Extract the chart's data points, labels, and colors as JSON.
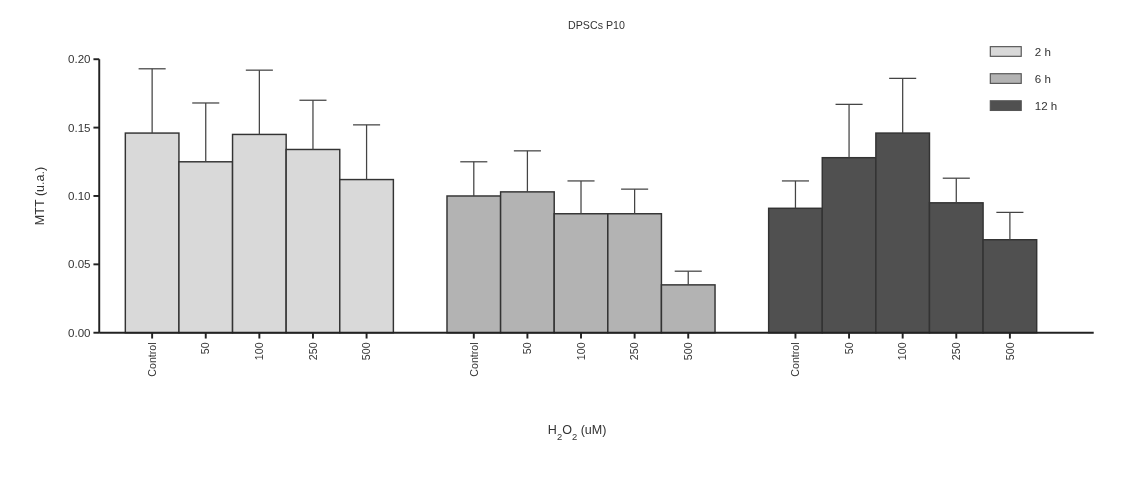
{
  "chart_data": {
    "type": "bar",
    "title": "DPSCs P10",
    "xlabel": "H$_{2}$O$_{2}$ (uM)",
    "ylabel": "MTT (u.a.)",
    "categories": [
      "Control",
      "50",
      "100",
      "250",
      "500",
      null,
      "Control",
      "50",
      "100",
      "250",
      "500",
      null,
      "Control",
      "50",
      "100",
      "250",
      "500"
    ],
    "ylim": [
      0,
      0.2
    ],
    "yticks": [
      {
        "value": 0,
        "label": "0.00"
      },
      {
        "value": 0.05,
        "label": "0.05"
      },
      {
        "value": 0.1,
        "label": "0.10"
      },
      {
        "value": 0.15,
        "label": "0.15"
      },
      {
        "value": 0.2,
        "label": "0.20"
      }
    ],
    "grid": false,
    "legend": "top right",
    "series": [
      {
        "name": "2 h",
        "color": "#d9d9d9",
        "values": [
          0.146,
          0.125,
          0.145,
          0.134,
          0.112,
          null,
          null,
          null,
          null,
          null,
          null,
          null,
          null,
          null,
          null,
          null,
          null
        ],
        "errors": [
          [
            0.146,
            0.193
          ],
          [
            0.125,
            0.168
          ],
          [
            0.145,
            0.192
          ],
          [
            0.134,
            0.17
          ],
          [
            0.112,
            0.152
          ],
          null,
          null,
          null,
          null,
          null,
          null,
          null,
          null,
          null,
          null,
          null,
          null
        ]
      },
      {
        "name": "6 h",
        "color": "#b3b3b3",
        "values": [
          null,
          null,
          null,
          null,
          null,
          null,
          0.1,
          0.103,
          0.087,
          0.087,
          0.035,
          null,
          null,
          null,
          null,
          null,
          null
        ],
        "errors": [
          null,
          null,
          null,
          null,
          null,
          null,
          [
            0.1,
            0.125
          ],
          [
            0.103,
            0.133
          ],
          [
            0.087,
            0.111
          ],
          [
            0.087,
            0.105
          ],
          [
            0.035,
            0.045
          ],
          null,
          null,
          null,
          null,
          null,
          null
        ]
      },
      {
        "name": "12 h",
        "color": "#505050",
        "values": [
          null,
          null,
          null,
          null,
          null,
          null,
          null,
          null,
          null,
          null,
          null,
          null,
          0.091,
          0.128,
          0.146,
          0.095,
          0.068
        ],
        "errors": [
          null,
          null,
          null,
          null,
          null,
          null,
          null,
          null,
          null,
          null,
          null,
          null,
          [
            0.091,
            0.111
          ],
          [
            0.128,
            0.167
          ],
          [
            0.146,
            0.186
          ],
          [
            0.095,
            0.113
          ],
          [
            0.068,
            0.088
          ]
        ]
      }
    ]
  }
}
